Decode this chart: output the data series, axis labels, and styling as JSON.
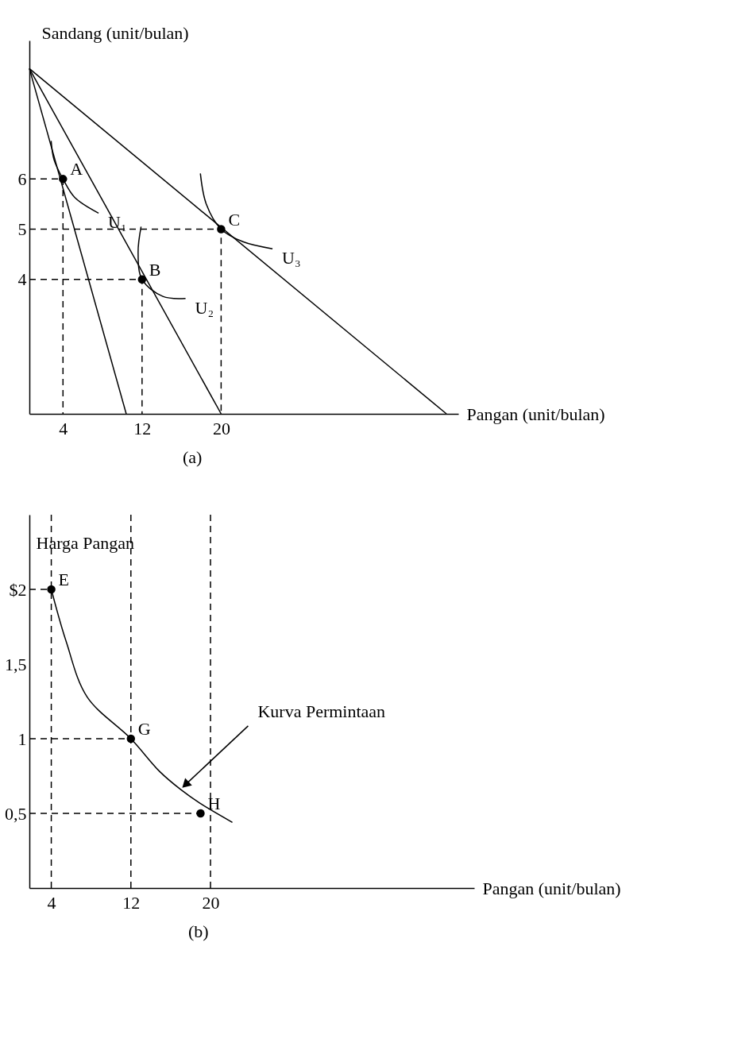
{
  "chart_data": [
    {
      "type": "line",
      "xlabel": "Pangan (unit/bulan)",
      "ylabel": "Sandang (unit/bulan)",
      "xlim": [
        0.6,
        44
      ],
      "ylim": [
        1.32,
        8.76
      ],
      "xticks": [
        4,
        12,
        20
      ],
      "yticks": [
        4,
        5,
        6
      ],
      "grid": false,
      "series": [
        {
          "type": "line",
          "color": "#000000",
          "x": [
            0.6,
            10.4
          ],
          "values": [
            8.2,
            1.32
          ]
        },
        {
          "type": "line",
          "color": "#000000",
          "x": [
            0.6,
            20
          ],
          "values": [
            8.2,
            1.32
          ]
        },
        {
          "type": "line",
          "color": "#000000",
          "x": [
            0.6,
            42.8
          ],
          "values": [
            8.2,
            1.32
          ]
        },
        {
          "type": "line",
          "name": "U₁",
          "color": "#000000",
          "x": [
            2.8,
            3.1,
            4,
            5.2,
            7.6
          ],
          "values": [
            6.76,
            6.38,
            6,
            5.63,
            5.32
          ]
        },
        {
          "type": "line",
          "name": "U₂",
          "color": "#000000",
          "x": [
            11.9,
            11.6,
            12,
            14.1,
            16.4
          ],
          "values": [
            5.05,
            4.54,
            4,
            3.66,
            3.62
          ]
        },
        {
          "type": "line",
          "name": "U₃",
          "color": "#000000",
          "x": [
            17.9,
            18.5,
            20,
            22.2,
            25.2
          ],
          "values": [
            6.11,
            5.5,
            5,
            4.75,
            4.61
          ]
        },
        {
          "type": "line",
          "line_style": "dashed",
          "color": "#000000",
          "x": [
            0.6,
            4,
            4
          ],
          "values": [
            6,
            6,
            1.32
          ]
        },
        {
          "type": "line",
          "line_style": "dashed",
          "color": "#000000",
          "x": [
            0.6,
            12,
            12
          ],
          "values": [
            4,
            4,
            1.32
          ]
        },
        {
          "type": "line",
          "line_style": "dashed",
          "color": "#000000",
          "x": [
            0.6,
            20,
            20
          ],
          "values": [
            5,
            5,
            1.32
          ]
        },
        {
          "type": "scatter",
          "marker": "circle",
          "color": "#000000",
          "x": [
            4,
            12,
            20
          ],
          "values": [
            6,
            4,
            5
          ]
        }
      ],
      "annotations": [
        {
          "text": "A",
          "x": 4,
          "y": 6
        },
        {
          "text": "B",
          "x": 12,
          "y": 4
        },
        {
          "text": "C",
          "x": 20,
          "y": 5
        },
        "(a)"
      ]
    },
    {
      "type": "line",
      "xlabel": "Pangan (unit/bulan)",
      "ylabel": "Harga Pangan",
      "xlim": [
        1.8,
        46.5
      ],
      "ylim": [
        0,
        2.5
      ],
      "xticks": [
        4,
        12,
        20
      ],
      "yticks": [
        {
          "value": 2,
          "label": "$2"
        },
        {
          "value": 1.5,
          "label": "1,5"
        },
        1,
        {
          "value": 0.5,
          "label": "0,5"
        }
      ],
      "grid": false,
      "series": [
        {
          "type": "line",
          "color": "#000000",
          "x": [
            4,
            5.5,
            7.6,
            12,
            14.9,
            17,
            18.9,
            22.2
          ],
          "values": [
            2,
            1.65,
            1.28,
            1,
            0.78,
            0.66,
            0.57,
            0.44
          ]
        },
        {
          "type": "line",
          "line_style": "dashed",
          "color": "#000000",
          "x": [
            4,
            4
          ],
          "values": [
            2.5,
            0
          ]
        },
        {
          "type": "line",
          "line_style": "dashed",
          "color": "#000000",
          "x": [
            12,
            12
          ],
          "values": [
            2.5,
            0
          ]
        },
        {
          "type": "line",
          "line_style": "dashed",
          "color": "#000000",
          "x": [
            20,
            20
          ],
          "values": [
            2.5,
            0
          ]
        },
        {
          "type": "line",
          "line_style": "dashed",
          "color": "#000000",
          "x": [
            1.8,
            4
          ],
          "values": [
            2,
            2
          ]
        },
        {
          "type": "line",
          "line_style": "dashed",
          "color": "#000000",
          "x": [
            1.8,
            12
          ],
          "values": [
            1,
            1
          ]
        },
        {
          "type": "line",
          "line_style": "dashed",
          "color": "#000000",
          "x": [
            1.8,
            19
          ],
          "values": [
            0.5,
            0.5
          ]
        },
        {
          "type": "scatter",
          "marker": "circle",
          "color": "#000000",
          "x": [
            4,
            12,
            19
          ],
          "values": [
            2,
            1,
            0.5
          ]
        }
      ],
      "annotations": [
        {
          "text": "E",
          "x": 4,
          "y": 2
        },
        {
          "text": "G",
          "x": 12,
          "y": 1
        },
        {
          "text": "H",
          "x": 19,
          "y": 0.5
        },
        {
          "text": "Kurva Permintaan",
          "x": 17,
          "y": 0.66
        },
        "(b)"
      ]
    }
  ]
}
